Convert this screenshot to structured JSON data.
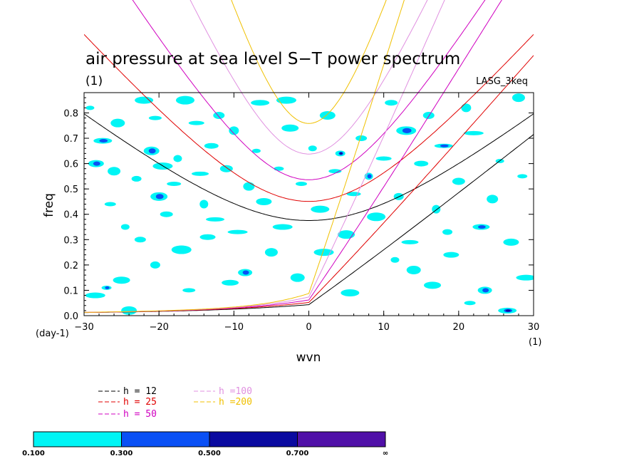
{
  "chart_data": {
    "type": "heatmap",
    "title": "air pressure at sea level S−T power spectrum",
    "subtitle": "(1)",
    "model_label": "LASG_3keq",
    "xlabel": "wvn",
    "ylabel": "freq",
    "x_unit": "(1)",
    "y_unit": "(day-1)",
    "xlim": [
      -30,
      30
    ],
    "ylim": [
      0.0,
      0.88
    ],
    "x_ticks": [
      "−30",
      "−20",
      "−10",
      "0",
      "10",
      "20",
      "30"
    ],
    "x_tick_values": [
      -30,
      -20,
      -10,
      0,
      10,
      20,
      30
    ],
    "y_ticks": [
      "0.0",
      "0.1",
      "0.2",
      "0.3",
      "0.4",
      "0.5",
      "0.6",
      "0.7",
      "0.8"
    ],
    "y_tick_values": [
      0.0,
      0.1,
      0.2,
      0.3,
      0.4,
      0.5,
      0.6,
      0.7,
      0.8
    ],
    "contour_levels": [
      "0.100",
      "0.300",
      "0.500",
      "0.700",
      "∞"
    ],
    "contour_colors": [
      "#00f5f5",
      "#0a50f5",
      "#0a0aa0",
      "#5010a8"
    ],
    "dispersion_curves": [
      {
        "name": "h = 12",
        "color": "#000000"
      },
      {
        "name": "h = 25",
        "color": "#e00000"
      },
      {
        "name": "h = 50",
        "color": "#d000c0"
      },
      {
        "name": "h =100",
        "color": "#e090e0"
      },
      {
        "name": "h =200",
        "color": "#f0c000"
      }
    ],
    "blobs": [
      {
        "x": -29.2,
        "y": 0.82,
        "lvl": 1
      },
      {
        "x": -27.5,
        "y": 0.69,
        "lvl": 2
      },
      {
        "x": -28.4,
        "y": 0.6,
        "lvl": 2
      },
      {
        "x": -26.0,
        "y": 0.57,
        "lvl": 1
      },
      {
        "x": -27.0,
        "y": 0.11,
        "lvl": 2
      },
      {
        "x": -28.5,
        "y": 0.08,
        "lvl": 1
      },
      {
        "x": -25.0,
        "y": 0.14,
        "lvl": 1
      },
      {
        "x": -25.5,
        "y": 0.76,
        "lvl": 1
      },
      {
        "x": -26.5,
        "y": 0.44,
        "lvl": 1
      },
      {
        "x": -24.5,
        "y": 0.35,
        "lvl": 1
      },
      {
        "x": -22.0,
        "y": 0.85,
        "lvl": 1
      },
      {
        "x": -21.0,
        "y": 0.65,
        "lvl": 2
      },
      {
        "x": -20.5,
        "y": 0.78,
        "lvl": 1
      },
      {
        "x": -23.0,
        "y": 0.54,
        "lvl": 1
      },
      {
        "x": -19.5,
        "y": 0.59,
        "lvl": 1
      },
      {
        "x": -20.0,
        "y": 0.47,
        "lvl": 2
      },
      {
        "x": -18.0,
        "y": 0.52,
        "lvl": 1
      },
      {
        "x": -22.5,
        "y": 0.3,
        "lvl": 1
      },
      {
        "x": -17.5,
        "y": 0.62,
        "lvl": 1
      },
      {
        "x": -16.5,
        "y": 0.85,
        "lvl": 1
      },
      {
        "x": -15.0,
        "y": 0.76,
        "lvl": 1
      },
      {
        "x": -19.0,
        "y": 0.4,
        "lvl": 1
      },
      {
        "x": -20.5,
        "y": 0.2,
        "lvl": 1
      },
      {
        "x": -17.0,
        "y": 0.26,
        "lvl": 1
      },
      {
        "x": -14.5,
        "y": 0.56,
        "lvl": 1
      },
      {
        "x": -13.0,
        "y": 0.67,
        "lvl": 1
      },
      {
        "x": -12.0,
        "y": 0.79,
        "lvl": 1
      },
      {
        "x": -14.0,
        "y": 0.44,
        "lvl": 1
      },
      {
        "x": -12.5,
        "y": 0.38,
        "lvl": 1
      },
      {
        "x": -13.5,
        "y": 0.31,
        "lvl": 1
      },
      {
        "x": -11.0,
        "y": 0.58,
        "lvl": 1
      },
      {
        "x": -10.0,
        "y": 0.73,
        "lvl": 1
      },
      {
        "x": -9.5,
        "y": 0.33,
        "lvl": 1
      },
      {
        "x": -10.5,
        "y": 0.13,
        "lvl": 1
      },
      {
        "x": -8.5,
        "y": 0.17,
        "lvl": 2
      },
      {
        "x": -8.0,
        "y": 0.51,
        "lvl": 1
      },
      {
        "x": -7.0,
        "y": 0.65,
        "lvl": 1
      },
      {
        "x": -6.5,
        "y": 0.84,
        "lvl": 1
      },
      {
        "x": -6.0,
        "y": 0.45,
        "lvl": 1
      },
      {
        "x": -5.0,
        "y": 0.25,
        "lvl": 1
      },
      {
        "x": -4.0,
        "y": 0.58,
        "lvl": 1
      },
      {
        "x": -3.5,
        "y": 0.35,
        "lvl": 1
      },
      {
        "x": -2.5,
        "y": 0.74,
        "lvl": 1
      },
      {
        "x": -1.5,
        "y": 0.15,
        "lvl": 1
      },
      {
        "x": -1.0,
        "y": 0.52,
        "lvl": 1
      },
      {
        "x": 0.5,
        "y": 0.66,
        "lvl": 1
      },
      {
        "x": 1.5,
        "y": 0.42,
        "lvl": 1
      },
      {
        "x": 2.5,
        "y": 0.79,
        "lvl": 1
      },
      {
        "x": 3.5,
        "y": 0.57,
        "lvl": 1
      },
      {
        "x": 4.2,
        "y": 0.64,
        "lvl": 3
      },
      {
        "x": 2.0,
        "y": 0.25,
        "lvl": 1
      },
      {
        "x": 5.0,
        "y": 0.32,
        "lvl": 1
      },
      {
        "x": 6.0,
        "y": 0.48,
        "lvl": 1
      },
      {
        "x": 7.0,
        "y": 0.7,
        "lvl": 1
      },
      {
        "x": 8.0,
        "y": 0.55,
        "lvl": 2
      },
      {
        "x": 9.0,
        "y": 0.39,
        "lvl": 1
      },
      {
        "x": 10.0,
        "y": 0.62,
        "lvl": 1
      },
      {
        "x": 11.0,
        "y": 0.84,
        "lvl": 1
      },
      {
        "x": 12.0,
        "y": 0.47,
        "lvl": 1
      },
      {
        "x": 13.0,
        "y": 0.73,
        "lvl": 2
      },
      {
        "x": 13.5,
        "y": 0.29,
        "lvl": 1
      },
      {
        "x": 15.0,
        "y": 0.6,
        "lvl": 1
      },
      {
        "x": 16.0,
        "y": 0.79,
        "lvl": 1
      },
      {
        "x": 17.0,
        "y": 0.42,
        "lvl": 1
      },
      {
        "x": 18.0,
        "y": 0.67,
        "lvl": 2
      },
      {
        "x": 19.0,
        "y": 0.24,
        "lvl": 1
      },
      {
        "x": 20.0,
        "y": 0.53,
        "lvl": 1
      },
      {
        "x": 21.0,
        "y": 0.82,
        "lvl": 1
      },
      {
        "x": 22.0,
        "y": 0.72,
        "lvl": 1
      },
      {
        "x": 23.0,
        "y": 0.35,
        "lvl": 2
      },
      {
        "x": 23.5,
        "y": 0.1,
        "lvl": 2
      },
      {
        "x": 24.5,
        "y": 0.46,
        "lvl": 1
      },
      {
        "x": 25.5,
        "y": 0.61,
        "lvl": 1
      },
      {
        "x": 26.5,
        "y": 0.02,
        "lvl": 3
      },
      {
        "x": 27.0,
        "y": 0.29,
        "lvl": 1
      },
      {
        "x": 28.0,
        "y": 0.86,
        "lvl": 1
      },
      {
        "x": 28.5,
        "y": 0.55,
        "lvl": 1
      },
      {
        "x": 29.0,
        "y": 0.15,
        "lvl": 1
      },
      {
        "x": 16.5,
        "y": 0.12,
        "lvl": 1
      },
      {
        "x": 14.0,
        "y": 0.18,
        "lvl": 1
      },
      {
        "x": 21.5,
        "y": 0.05,
        "lvl": 1
      },
      {
        "x": 11.5,
        "y": 0.22,
        "lvl": 1
      },
      {
        "x": 5.5,
        "y": 0.09,
        "lvl": 1
      },
      {
        "x": -24.0,
        "y": 0.02,
        "lvl": 1
      },
      {
        "x": -16.0,
        "y": 0.1,
        "lvl": 1
      },
      {
        "x": 18.5,
        "y": 0.33,
        "lvl": 1
      },
      {
        "x": -3.0,
        "y": 0.85,
        "lvl": 1
      }
    ]
  }
}
